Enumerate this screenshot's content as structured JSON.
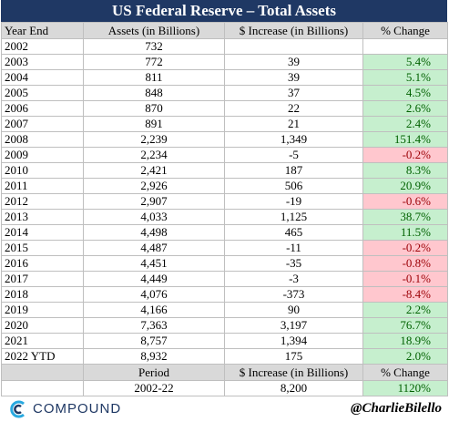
{
  "title": "US Federal Reserve – Total Assets",
  "header": [
    "Year End",
    "Assets (in Billions)",
    "$ Increase (in Billions)",
    "% Change"
  ],
  "rows": [
    {
      "year": "2002",
      "assets": "732"
    },
    {
      "year": "2003",
      "assets": "772",
      "increase": "39",
      "change": "5.4%"
    },
    {
      "year": "2004",
      "assets": "811",
      "increase": "39",
      "change": "5.1%"
    },
    {
      "year": "2005",
      "assets": "848",
      "increase": "37",
      "change": "4.5%"
    },
    {
      "year": "2006",
      "assets": "870",
      "increase": "22",
      "change": "2.6%"
    },
    {
      "year": "2007",
      "assets": "891",
      "increase": "21",
      "change": "2.4%"
    },
    {
      "year": "2008",
      "assets": "2,239",
      "increase": "1,349",
      "change": "151.4%"
    },
    {
      "year": "2009",
      "assets": "2,234",
      "increase": "-5",
      "change": "-0.2%"
    },
    {
      "year": "2010",
      "assets": "2,421",
      "increase": "187",
      "change": "8.3%"
    },
    {
      "year": "2011",
      "assets": "2,926",
      "increase": "506",
      "change": "20.9%"
    },
    {
      "year": "2012",
      "assets": "2,907",
      "increase": "-19",
      "change": "-0.6%"
    },
    {
      "year": "2013",
      "assets": "4,033",
      "increase": "1,125",
      "change": "38.7%"
    },
    {
      "year": "2014",
      "assets": "4,498",
      "increase": "465",
      "change": "11.5%"
    },
    {
      "year": "2015",
      "assets": "4,487",
      "increase": "-11",
      "change": "-0.2%"
    },
    {
      "year": "2016",
      "assets": "4,451",
      "increase": "-35",
      "change": "-0.8%"
    },
    {
      "year": "2017",
      "assets": "4,449",
      "increase": "-3",
      "change": "-0.1%"
    },
    {
      "year": "2018",
      "assets": "4,076",
      "increase": "-373",
      "change": "-8.4%"
    },
    {
      "year": "2019",
      "assets": "4,166",
      "increase": "90",
      "change": "2.2%"
    },
    {
      "year": "2020",
      "assets": "7,363",
      "increase": "3,197",
      "change": "76.7%"
    },
    {
      "year": "2021",
      "assets": "8,757",
      "increase": "1,394",
      "change": "18.9%"
    },
    {
      "year": "2022 YTD",
      "assets": "8,932",
      "increase": "175",
      "change": "2.0%"
    }
  ],
  "summary_header": [
    "Period",
    "$ Increase (in Billions)",
    "% Change"
  ],
  "summary_row": [
    "2002-22",
    "8,200",
    "1120%"
  ],
  "brand": "COMPOUND",
  "handle": "@CharlieBilello"
}
